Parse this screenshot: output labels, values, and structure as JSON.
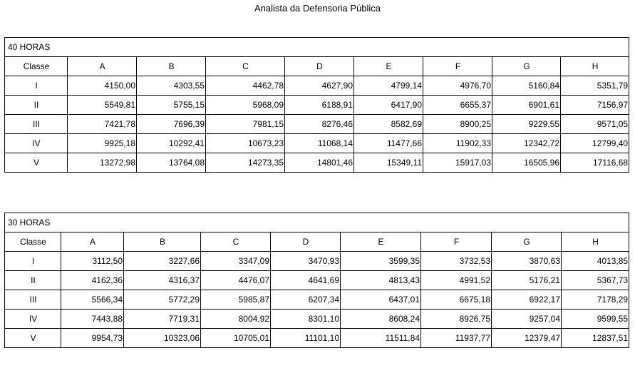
{
  "title": "Analista da Defensoria Pública",
  "tables": [
    {
      "caption": "40 HORAS",
      "headers": [
        "Classe",
        "A",
        "B",
        "C",
        "D",
        "E",
        "F",
        "G",
        "H"
      ],
      "rows": [
        {
          "classe": "I",
          "values": [
            "4150,00",
            "4303,55",
            "4462,78",
            "4627,90",
            "4799,14",
            "4976,70",
            "5160,84",
            "5351,79"
          ]
        },
        {
          "classe": "II",
          "values": [
            "5549,81",
            "5755,15",
            "5968,09",
            "6188,91",
            "6417,90",
            "6655,37",
            "6901,61",
            "7156,97"
          ]
        },
        {
          "classe": "III",
          "values": [
            "7421,78",
            "7696,39",
            "7981,15",
            "8276,46",
            "8582,69",
            "8900,25",
            "9229,55",
            "9571,05"
          ]
        },
        {
          "classe": "IV",
          "values": [
            "9925,18",
            "10292,41",
            "10673,23",
            "11068,14",
            "11477,66",
            "11902,33",
            "12342,72",
            "12799,40"
          ]
        },
        {
          "classe": "V",
          "values": [
            "13272,98",
            "13764,08",
            "14273,35",
            "14801,46",
            "15349,11",
            "15917,03",
            "16505,96",
            "17116,68"
          ]
        }
      ]
    },
    {
      "caption": "30 HORAS",
      "headers": [
        "Classe",
        "A",
        "B",
        "C",
        "D",
        "E",
        "F",
        "G",
        "H"
      ],
      "rows": [
        {
          "classe": "I",
          "values": [
            "3112,50",
            "3227,66",
            "3347,09",
            "3470,93",
            "3599,35",
            "3732,53",
            "3870,63",
            "4013,85"
          ]
        },
        {
          "classe": "II",
          "values": [
            "4162,36",
            "4316,37",
            "4476,07",
            "4641,69",
            "4813,43",
            "4991,52",
            "5176,21",
            "5367,73"
          ]
        },
        {
          "classe": "III",
          "values": [
            "5566,34",
            "5772,29",
            "5985,87",
            "6207,34",
            "6437,01",
            "6675,18",
            "6922,17",
            "7178,29"
          ]
        },
        {
          "classe": "IV",
          "values": [
            "7443,88",
            "7719,31",
            "8004,92",
            "8301,10",
            "8608,24",
            "8926,75",
            "9257,04",
            "9599,55"
          ]
        },
        {
          "classe": "V",
          "values": [
            "9954,73",
            "10323,06",
            "10705,01",
            "11101,10",
            "11511,84",
            "11937,77",
            "12379,47",
            "12837,51"
          ]
        }
      ]
    }
  ]
}
